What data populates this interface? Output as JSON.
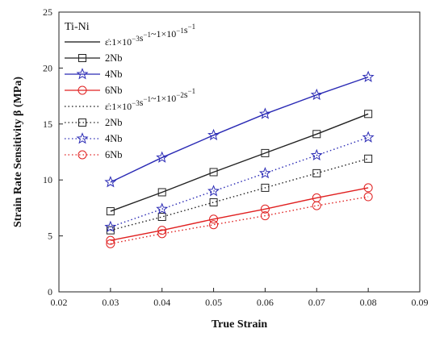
{
  "chart_data": {
    "type": "line",
    "title": "",
    "xlabel": "True Strain",
    "ylabel": "Strain Rate Sensitivity β (MPa)",
    "xlim": [
      0.02,
      0.09
    ],
    "ylim": [
      0,
      25
    ],
    "xticks": [
      "0.02",
      "0.03",
      "0.04",
      "0.05",
      "0.06",
      "0.07",
      "0.08",
      "0.09"
    ],
    "yticks": [
      "0",
      "5",
      "10",
      "15",
      "20",
      "25"
    ],
    "grid": false,
    "legend_placement": "top-left",
    "legend_title": "Ti-Ni",
    "groups": [
      {
        "label": "ε̇:1×10⁻³s⁻¹~1×10⁻¹s⁻¹",
        "dot": "ε̇",
        "colon": ":",
        "base1": "1×10",
        "exp1": "−3",
        "unit1": "s",
        "unitexp1": "−1",
        "sep": "~",
        "base2": "1×10",
        "exp2": "−1",
        "unit2": "s",
        "unitexp2": "−1",
        "line_style": "solid"
      },
      {
        "label": "ε̇:1×10⁻³s⁻¹~1×10⁻²s⁻¹",
        "dot": "ε̇",
        "colon": ":",
        "base1": "1×10",
        "exp1": "−3",
        "unit1": "s",
        "unitexp1": "−1",
        "sep": "~",
        "base2": "1×10",
        "exp2": "−2",
        "unit2": "s",
        "unitexp2": "−1",
        "line_style": "dotted"
      }
    ],
    "x": [
      0.03,
      0.04,
      0.05,
      0.06,
      0.07,
      0.08
    ],
    "series": [
      {
        "name": "2Nb",
        "group": 0,
        "marker": "square",
        "color": "#222222",
        "values": [
          7.2,
          8.9,
          10.7,
          12.4,
          14.1,
          15.9
        ]
      },
      {
        "name": "4Nb",
        "group": 0,
        "marker": "star",
        "color": "#2b2bb5",
        "values": [
          9.8,
          12.0,
          14.0,
          15.9,
          17.6,
          19.2
        ]
      },
      {
        "name": "6Nb",
        "group": 0,
        "marker": "circle",
        "color": "#e02020",
        "values": [
          4.6,
          5.5,
          6.5,
          7.4,
          8.4,
          9.3
        ]
      },
      {
        "name": "2Nb",
        "group": 1,
        "marker": "square",
        "color": "#222222",
        "values": [
          5.5,
          6.7,
          8.0,
          9.3,
          10.6,
          11.9
        ]
      },
      {
        "name": "4Nb",
        "group": 1,
        "marker": "star",
        "color": "#2b2bb5",
        "values": [
          5.8,
          7.4,
          9.0,
          10.6,
          12.2,
          13.8
        ]
      },
      {
        "name": "6Nb",
        "group": 1,
        "marker": "circle",
        "color": "#e02020",
        "values": [
          4.3,
          5.2,
          6.0,
          6.8,
          7.7,
          8.5
        ]
      }
    ]
  }
}
